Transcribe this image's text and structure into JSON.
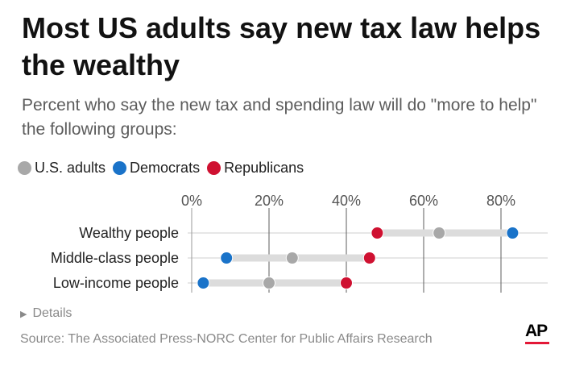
{
  "title": "Most US adults say new tax law helps the wealthy",
  "subtitle": "Percent who say the new tax and spending law will do \"more to help\" the following groups:",
  "legend": [
    {
      "label": "U.S. adults",
      "color": "#a8a8a8"
    },
    {
      "label": "Democrats",
      "color": "#1a73c9"
    },
    {
      "label": "Republicans",
      "color": "#cf1131"
    }
  ],
  "details_label": "Details",
  "source": "Source: The Associated Press-NORC Center for Public Affairs Research",
  "logo_text": "AP",
  "chart_data": {
    "type": "dot",
    "title": "Most US adults say new tax law helps the wealthy",
    "categories": [
      "Wealthy people",
      "Middle-class people",
      "Low-income people"
    ],
    "series": [
      {
        "name": "U.S. adults",
        "color": "#a8a8a8",
        "values": [
          64,
          26,
          20
        ]
      },
      {
        "name": "Democrats",
        "color": "#1a73c9",
        "values": [
          83,
          9,
          3
        ]
      },
      {
        "name": "Republicans",
        "color": "#cf1131",
        "values": [
          48,
          46,
          40
        ]
      }
    ],
    "xlim": [
      0,
      80
    ],
    "xticks": [
      0,
      20,
      40,
      60,
      80
    ],
    "xtick_labels": [
      "0%",
      "20%",
      "40%",
      "60%",
      "80%"
    ],
    "grid": true,
    "legend": "top-left"
  }
}
